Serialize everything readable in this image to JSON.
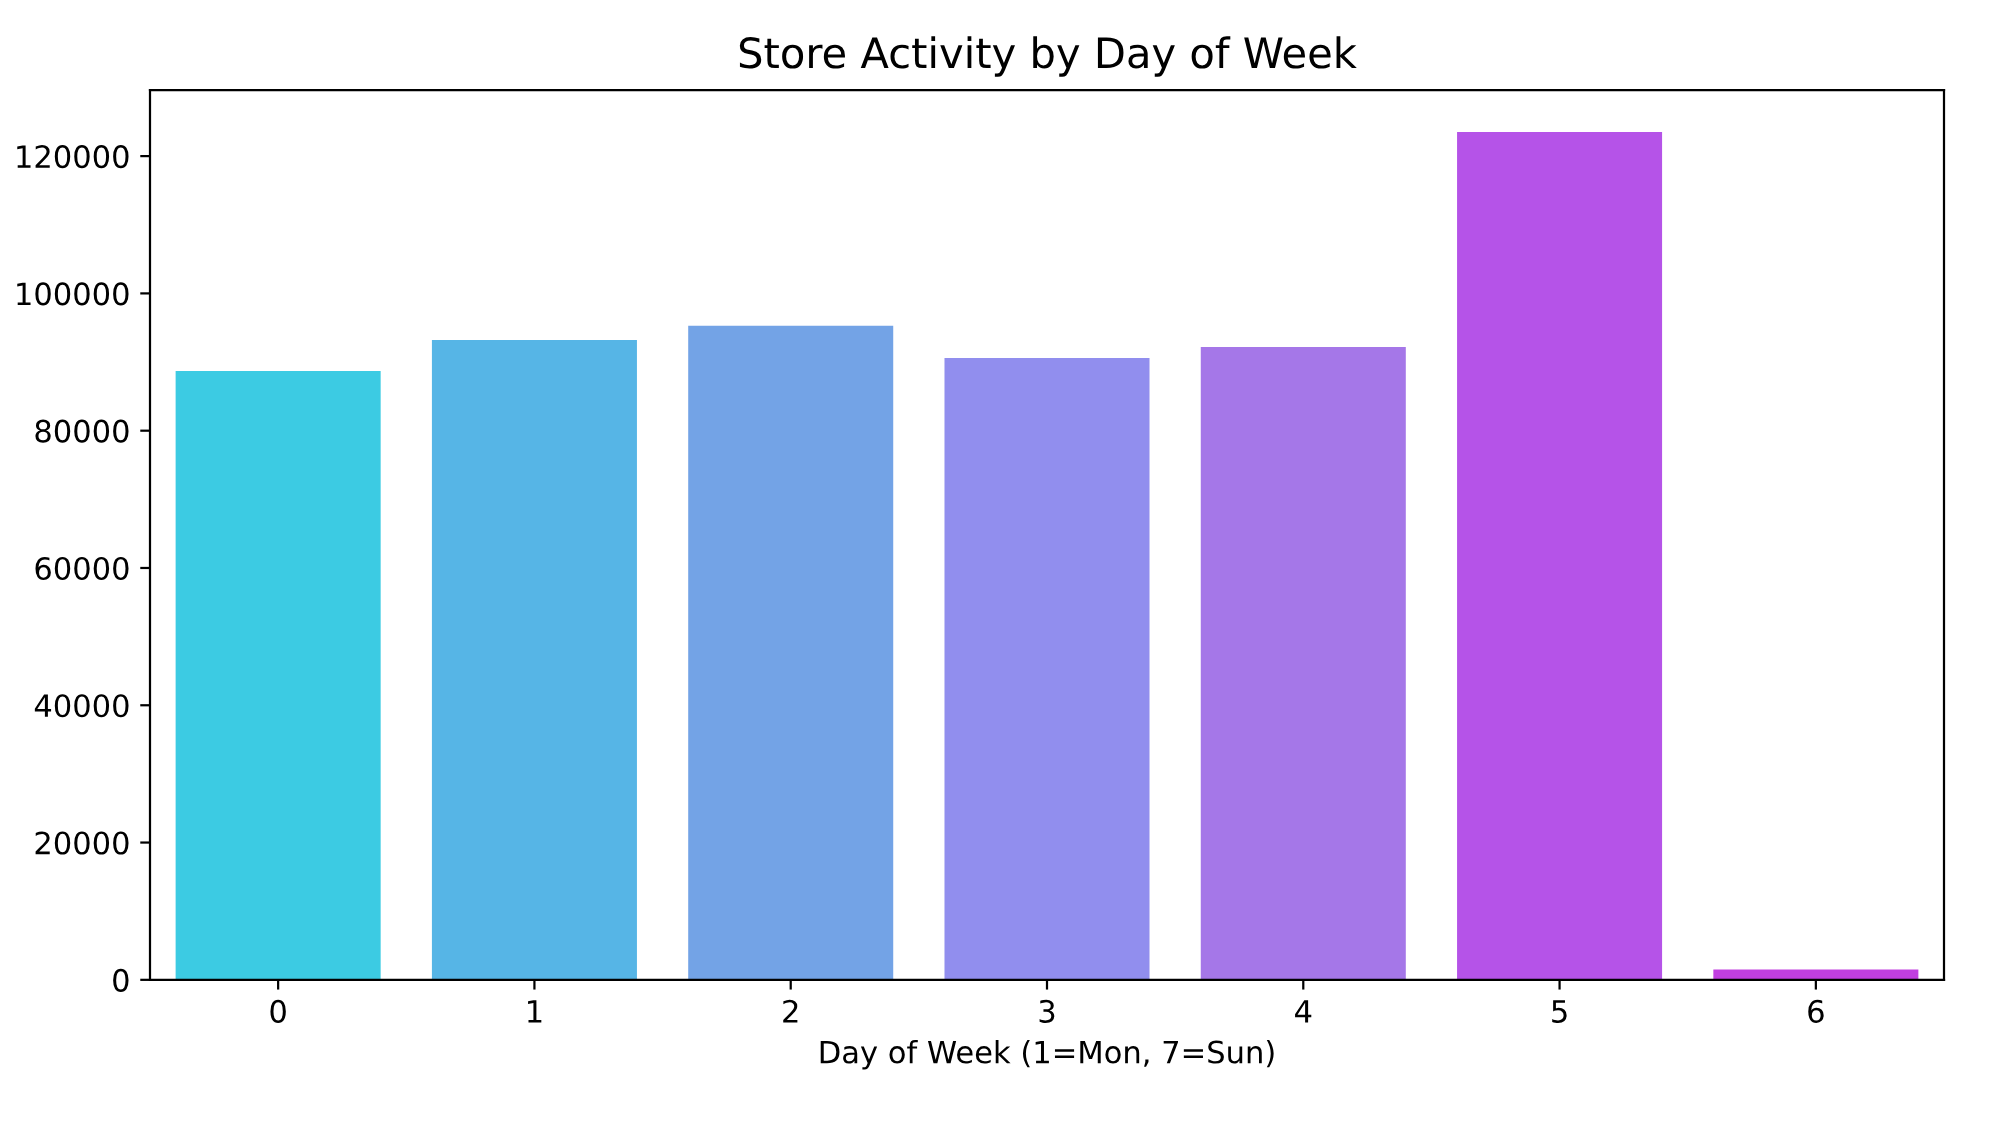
{
  "chart_data": {
    "type": "bar",
    "title": "Store Activity by Day of Week",
    "xlabel": "Day of Week (1=Mon, 7=Sun)",
    "categories": [
      "0",
      "1",
      "2",
      "3",
      "4",
      "5",
      "6"
    ],
    "values": [
      88700,
      93200,
      95300,
      90600,
      92200,
      123500,
      1500
    ],
    "colors": [
      "#3ccbe3",
      "#56b5e6",
      "#73a3e6",
      "#918eee",
      "#a577e8",
      "#b553e8",
      "#c13fe0"
    ],
    "ylim": [
      0,
      129600
    ],
    "yticks": [
      0,
      20000,
      40000,
      60000,
      80000,
      100000,
      120000
    ],
    "grid": false
  }
}
